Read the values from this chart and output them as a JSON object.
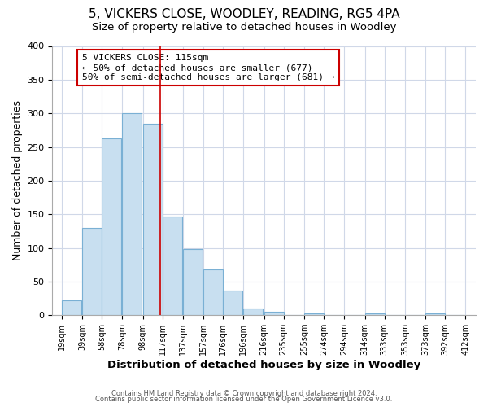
{
  "title": "5, VICKERS CLOSE, WOODLEY, READING, RG5 4PA",
  "subtitle": "Size of property relative to detached houses in Woodley",
  "xlabel": "Distribution of detached houses by size in Woodley",
  "ylabel": "Number of detached properties",
  "bar_left_edges": [
    19,
    39,
    58,
    78,
    98,
    117,
    137,
    157,
    176,
    196,
    216,
    235,
    255,
    274,
    294,
    314,
    333,
    353,
    373,
    392
  ],
  "bar_heights": [
    22,
    130,
    263,
    300,
    285,
    147,
    98,
    68,
    37,
    10,
    5,
    0,
    3,
    0,
    0,
    3,
    0,
    0,
    3,
    0
  ],
  "bar_widths": [
    19,
    19,
    19,
    19,
    19,
    19,
    19,
    19,
    19,
    19,
    19,
    19,
    19,
    19,
    19,
    19,
    19,
    19,
    19,
    19
  ],
  "bar_color": "#c8dff0",
  "bar_edgecolor": "#7ab0d4",
  "vline_x": 115,
  "vline_color": "#cc0000",
  "annotation_line1": "5 VICKERS CLOSE: 115sqm",
  "annotation_line2": "← 50% of detached houses are smaller (677)",
  "annotation_line3": "50% of semi-detached houses are larger (681) →",
  "annotation_box_color": "white",
  "annotation_box_edgecolor": "#cc0000",
  "tick_labels": [
    "19sqm",
    "39sqm",
    "58sqm",
    "78sqm",
    "98sqm",
    "117sqm",
    "137sqm",
    "157sqm",
    "176sqm",
    "196sqm",
    "216sqm",
    "235sqm",
    "255sqm",
    "274sqm",
    "294sqm",
    "314sqm",
    "333sqm",
    "353sqm",
    "373sqm",
    "392sqm",
    "412sqm"
  ],
  "tick_positions": [
    19,
    39,
    58,
    78,
    98,
    117,
    137,
    157,
    176,
    196,
    216,
    235,
    255,
    274,
    294,
    314,
    333,
    353,
    373,
    392,
    412
  ],
  "ylim": [
    0,
    400
  ],
  "xlim": [
    10,
    422
  ],
  "yticks": [
    0,
    50,
    100,
    150,
    200,
    250,
    300,
    350,
    400
  ],
  "footer1": "Contains HM Land Registry data © Crown copyright and database right 2024.",
  "footer2": "Contains public sector information licensed under the Open Government Licence v3.0.",
  "bg_color": "#ffffff",
  "plot_bg_color": "#ffffff",
  "grid_color": "#d0d8e8",
  "title_fontsize": 11,
  "subtitle_fontsize": 9.5,
  "tick_fontsize": 7,
  "ylabel_fontsize": 9,
  "xlabel_fontsize": 9.5,
  "footer_fontsize": 6,
  "annotation_fontsize": 8
}
